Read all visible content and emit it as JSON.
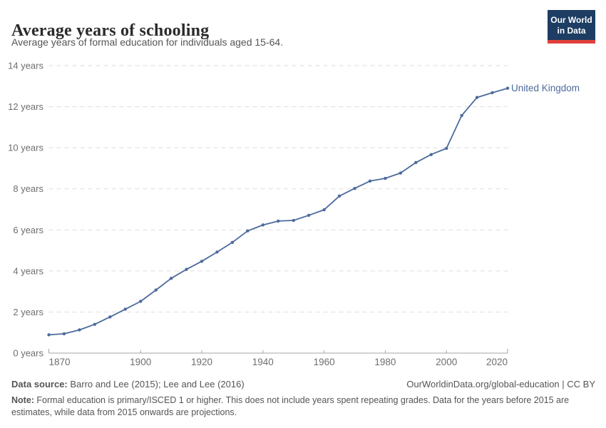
{
  "header": {
    "title": "Average years of schooling",
    "subtitle": "Average years of formal education for individuals aged 15-64."
  },
  "logo": {
    "line1": "Our World",
    "line2": "in Data"
  },
  "chart_data": {
    "type": "line",
    "title": "Average years of schooling",
    "xlabel": "",
    "ylabel": "years",
    "x": [
      1870,
      1875,
      1880,
      1885,
      1890,
      1895,
      1900,
      1905,
      1910,
      1915,
      1920,
      1925,
      1930,
      1935,
      1940,
      1945,
      1950,
      1955,
      1960,
      1965,
      1970,
      1975,
      1980,
      1985,
      1990,
      1995,
      2000,
      2005,
      2010,
      2015,
      2020
    ],
    "series": [
      {
        "name": "United Kingdom",
        "color": "#4c6a9c",
        "values": [
          0.89,
          0.94,
          1.13,
          1.4,
          1.76,
          2.14,
          2.52,
          3.07,
          3.64,
          4.08,
          4.47,
          4.92,
          5.39,
          5.95,
          6.24,
          6.43,
          6.46,
          6.71,
          6.98,
          7.65,
          8.02,
          8.38,
          8.51,
          8.77,
          9.28,
          9.67,
          9.97,
          11.57,
          12.45,
          12.68,
          12.9
        ]
      }
    ],
    "xlim": [
      1870,
      2020
    ],
    "ylim": [
      0,
      14
    ],
    "x_ticks": [
      1870,
      1900,
      1920,
      1940,
      1960,
      1980,
      2000,
      2020
    ],
    "y_ticks": [
      0,
      2,
      4,
      6,
      8,
      10,
      12,
      14
    ],
    "y_tick_suffix": " years",
    "grid": "horizontal-dashed",
    "legend_position": "end-of-line-label"
  },
  "footer": {
    "source_label": "Data source:",
    "source_text": " Barro and Lee (2015); Lee and Lee (2016)",
    "license": "OurWorldinData.org/global-education | CC BY",
    "note_label": "Note:",
    "note_text": " Formal education is primary/ISCED 1 or higher. This does not include years spent repeating grades. Data for the years before 2015 are estimates, while data from 2015 onwards are projections."
  },
  "colors": {
    "line": "#4c6a9c",
    "grid": "#dedede",
    "axis": "#a5a5a5",
    "tick_label": "#6e6e6e",
    "title": "#2b2b2b",
    "body_text": "#555555",
    "logo_bg": "#1d3d63",
    "logo_stripe": "#e0403a"
  }
}
